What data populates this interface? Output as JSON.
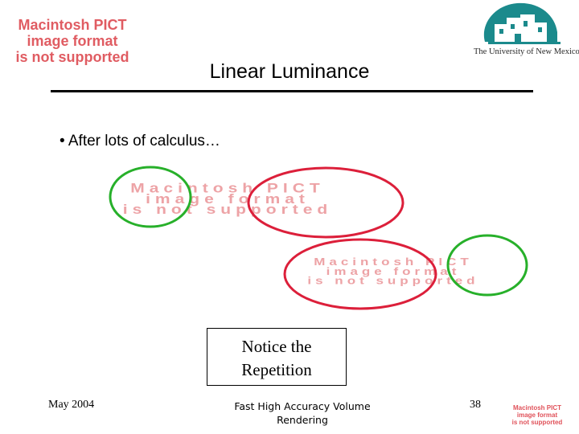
{
  "placeholder": {
    "line1": "Macintosh PICT",
    "line2": "image format",
    "line3": "is not supported"
  },
  "logo": {
    "caption": "The University of New Mexico"
  },
  "slide": {
    "title": "Linear Luminance",
    "bullet": "• After lots of calculus…",
    "notice_line1": "Notice the",
    "notice_line2": "Repetition"
  },
  "footer": {
    "date": "May 2004",
    "title_line1": "Fast High Accuracy Volume",
    "title_line2": "Rendering",
    "page": "38"
  },
  "colors": {
    "placeholder_red": "#e05c62",
    "circle_green": "#27b02a",
    "circle_red": "#dc1f3a",
    "logo_teal": "#1b8a8c"
  }
}
